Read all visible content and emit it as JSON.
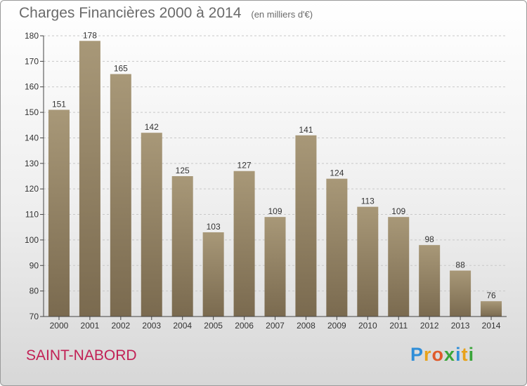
{
  "header": {
    "title": "Charges Financières 2000 à 2014",
    "unit": "(en milliers d'€)"
  },
  "footer": {
    "place": "SAINT-NABORD",
    "logo": {
      "letters": [
        "P",
        "r",
        "o",
        "x",
        "i",
        "t",
        "i"
      ],
      "colors": [
        "#2f8ed8",
        "#e8a21a",
        "#e05a2a",
        "#3aa53a",
        "#2f8ed8",
        "#e8a21a",
        "#3aa53a"
      ]
    }
  },
  "chart_data": {
    "type": "bar",
    "title": "Charges Financières 2000 à 2014",
    "subtitle": "(en milliers d'€)",
    "categories": [
      "2000",
      "2001",
      "2002",
      "2003",
      "2004",
      "2005",
      "2006",
      "2007",
      "2008",
      "2009",
      "2010",
      "2011",
      "2012",
      "2013",
      "2014"
    ],
    "values": [
      151,
      178,
      165,
      142,
      125,
      103,
      127,
      109,
      141,
      124,
      113,
      109,
      98,
      88,
      76
    ],
    "ylim": [
      70,
      180
    ],
    "yticks": [
      70,
      80,
      90,
      100,
      110,
      120,
      130,
      140,
      150,
      160,
      170,
      180
    ],
    "grid": true,
    "colors": {
      "bar_top": "#a89878",
      "bar_bottom": "#7a6a4f",
      "grid": "#c8c8c8",
      "axis": "#444444"
    }
  }
}
